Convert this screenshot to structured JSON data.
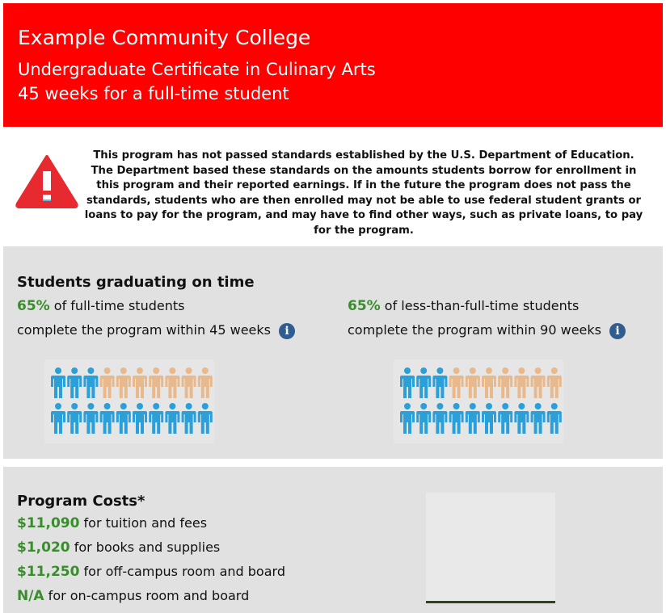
{
  "header": {
    "college": "Example Community College",
    "program": "Undergraduate Certificate in Culinary Arts",
    "duration": "45 weeks for a full-time student"
  },
  "warning": {
    "icon": "warning-triangle-icon",
    "text": "This program has not passed standards established by the U.S. Department of Education. The Department based these standards on the amounts students borrow for enrollment in this program and their reported earnings. If in the future the program does not pass the standards, students who are then enrolled may not be able to use federal student grants or loans to pay for the program, and may have to find other ways, such as private loans, to pay for the program."
  },
  "graduation": {
    "title": "Students graduating on time",
    "full_time": {
      "pct": "65%",
      "line1": " of full-time students",
      "line2": "complete the program within 45 weeks",
      "filled": 13,
      "total": 20
    },
    "part_time": {
      "pct": "65%",
      "line1": " of less-than-full-time students",
      "line2": "complete the program within 90 weeks",
      "filled": 13,
      "total": 20
    },
    "info_glyph": "i"
  },
  "costs": {
    "title": "Program Costs*",
    "items": [
      {
        "amount": "$11,090",
        "label": " for tuition and fees"
      },
      {
        "amount": "$1,020",
        "label": " for books and supplies"
      },
      {
        "amount": "$11,250",
        "label": " for off-campus room and board"
      },
      {
        "amount": "N/A",
        "label": " for on-campus room and board"
      }
    ]
  },
  "colors": {
    "header": "#fe0000",
    "highlight": "#3a8d2c",
    "completed": "#2b9fd8",
    "not_completed": "#e8b98c"
  }
}
